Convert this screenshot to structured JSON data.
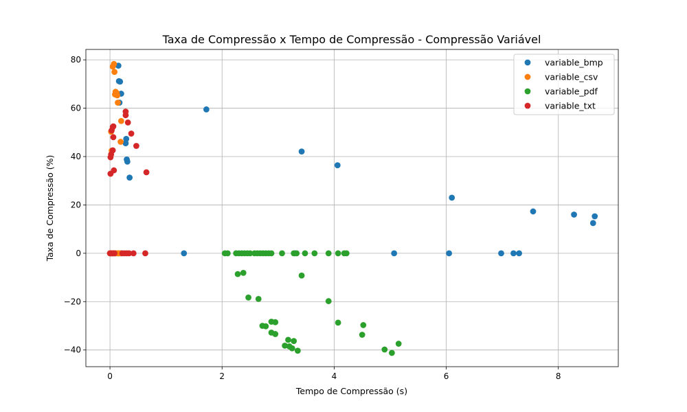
{
  "chart_data": {
    "type": "scatter",
    "title": "Taxa de Compressão x Tempo de Compressão - Compressão Variável",
    "xlabel": "Tempo de Compressão (s)",
    "ylabel": "Taxa de Compressão (%)",
    "xlim": [
      -0.43,
      9.07
    ],
    "ylim": [
      -46.9,
      84.3
    ],
    "xticks": [
      0,
      2,
      4,
      6,
      8
    ],
    "yticks": [
      -40,
      -20,
      0,
      20,
      40,
      60,
      80
    ],
    "grid": true,
    "legend_position": "top-right",
    "series": [
      {
        "name": "variable_bmp",
        "color": "#1f77b4",
        "points": [
          [
            0.15,
            77.6
          ],
          [
            0.16,
            71.2
          ],
          [
            0.18,
            71.0
          ],
          [
            0.2,
            66.0
          ],
          [
            0.17,
            62.3
          ],
          [
            0.28,
            45.5
          ],
          [
            0.29,
            47.3
          ],
          [
            0.3,
            38.8
          ],
          [
            0.31,
            37.9
          ],
          [
            0.35,
            31.3
          ],
          [
            1.72,
            59.5
          ],
          [
            3.42,
            42.1
          ],
          [
            4.06,
            36.4
          ],
          [
            6.1,
            23.0
          ],
          [
            7.55,
            17.3
          ],
          [
            8.28,
            16.0
          ],
          [
            8.65,
            15.3
          ],
          [
            8.62,
            12.5
          ],
          [
            0.02,
            0.0
          ],
          [
            0.05,
            0.0
          ],
          [
            0.1,
            0.0
          ],
          [
            0.15,
            0.0
          ],
          [
            0.2,
            0.0
          ],
          [
            1.32,
            0.0
          ],
          [
            3.3,
            0.0
          ],
          [
            5.07,
            0.0
          ],
          [
            6.05,
            0.0
          ],
          [
            6.98,
            0.0
          ],
          [
            7.2,
            0.0
          ],
          [
            7.3,
            0.0
          ]
        ]
      },
      {
        "name": "variable_csv",
        "color": "#ff7f0e",
        "points": [
          [
            0.07,
            78.3
          ],
          [
            0.05,
            77.2
          ],
          [
            0.08,
            75.0
          ],
          [
            0.1,
            66.8
          ],
          [
            0.12,
            66.3
          ],
          [
            0.13,
            65.3
          ],
          [
            0.09,
            65.7
          ],
          [
            0.14,
            62.3
          ],
          [
            0.2,
            54.7
          ],
          [
            0.02,
            50.3
          ],
          [
            0.19,
            46.1
          ],
          [
            0.03,
            42.4
          ],
          [
            0.0,
            0.0
          ],
          [
            0.03,
            0.0
          ],
          [
            0.06,
            0.0
          ],
          [
            0.09,
            0.0
          ],
          [
            0.12,
            0.0
          ],
          [
            0.15,
            0.0
          ],
          [
            0.18,
            0.0
          ]
        ]
      },
      {
        "name": "variable_pdf",
        "color": "#2ca02c",
        "points": [
          [
            2.05,
            0.0
          ],
          [
            2.1,
            0.0
          ],
          [
            2.25,
            0.0
          ],
          [
            2.3,
            0.0
          ],
          [
            2.35,
            0.0
          ],
          [
            2.4,
            0.0
          ],
          [
            2.45,
            0.0
          ],
          [
            2.5,
            0.0
          ],
          [
            2.58,
            0.0
          ],
          [
            2.63,
            0.0
          ],
          [
            2.68,
            0.0
          ],
          [
            2.73,
            0.0
          ],
          [
            2.78,
            0.0
          ],
          [
            2.83,
            0.0
          ],
          [
            2.88,
            0.0
          ],
          [
            3.07,
            0.0
          ],
          [
            3.28,
            0.0
          ],
          [
            3.33,
            0.0
          ],
          [
            3.48,
            0.0
          ],
          [
            3.65,
            0.0
          ],
          [
            3.9,
            0.0
          ],
          [
            4.07,
            0.0
          ],
          [
            4.18,
            0.0
          ],
          [
            4.22,
            0.0
          ],
          [
            2.28,
            -8.6
          ],
          [
            2.38,
            -8.1
          ],
          [
            3.42,
            -9.2
          ],
          [
            2.47,
            -18.3
          ],
          [
            2.65,
            -18.9
          ],
          [
            3.9,
            -19.8
          ],
          [
            2.72,
            -30.0
          ],
          [
            2.78,
            -30.2
          ],
          [
            2.88,
            -28.3
          ],
          [
            2.95,
            -28.5
          ],
          [
            4.07,
            -28.7
          ],
          [
            4.52,
            -29.7
          ],
          [
            2.88,
            -32.8
          ],
          [
            2.95,
            -33.4
          ],
          [
            4.5,
            -33.7
          ],
          [
            3.18,
            -35.8
          ],
          [
            3.28,
            -36.3
          ],
          [
            5.15,
            -37.4
          ],
          [
            3.12,
            -38.2
          ],
          [
            3.2,
            -38.5
          ],
          [
            3.25,
            -39.3
          ],
          [
            3.35,
            -40.3
          ],
          [
            4.9,
            -39.8
          ],
          [
            5.03,
            -41.2
          ]
        ]
      },
      {
        "name": "variable_txt",
        "color": "#d62728",
        "points": [
          [
            0.28,
            58.6
          ],
          [
            0.28,
            57.1
          ],
          [
            0.32,
            54.1
          ],
          [
            0.05,
            52.2
          ],
          [
            0.06,
            52.5
          ],
          [
            0.03,
            50.8
          ],
          [
            0.38,
            49.5
          ],
          [
            0.06,
            48.0
          ],
          [
            0.47,
            44.4
          ],
          [
            0.05,
            42.6
          ],
          [
            0.02,
            40.9
          ],
          [
            0.01,
            39.7
          ],
          [
            0.07,
            34.3
          ],
          [
            0.65,
            33.5
          ],
          [
            0.01,
            32.9
          ],
          [
            0.0,
            0.0
          ],
          [
            0.02,
            0.0
          ],
          [
            0.05,
            0.0
          ],
          [
            0.08,
            0.0
          ],
          [
            0.22,
            0.0
          ],
          [
            0.26,
            0.0
          ],
          [
            0.3,
            0.0
          ],
          [
            0.34,
            0.0
          ],
          [
            0.42,
            0.0
          ],
          [
            0.63,
            0.0
          ]
        ]
      }
    ]
  }
}
